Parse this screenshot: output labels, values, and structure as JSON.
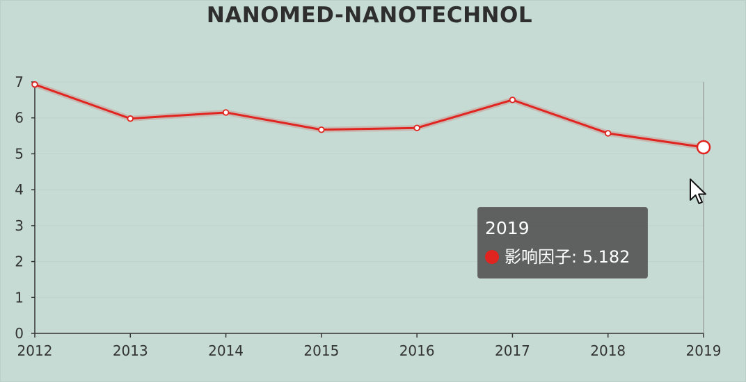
{
  "chart_data": {
    "type": "line",
    "title": "NANOMED-NANOTECHNOL",
    "xlabel": "",
    "ylabel": "",
    "categories": [
      "2012",
      "2013",
      "2014",
      "2015",
      "2016",
      "2017",
      "2018",
      "2019"
    ],
    "series": [
      {
        "name": "影响因子",
        "values": [
          6.93,
          5.98,
          6.15,
          5.67,
          5.72,
          6.5,
          5.57,
          5.182
        ],
        "color": "#e0241f"
      }
    ],
    "ylim": [
      0,
      7
    ],
    "yticks": [
      0,
      1,
      2,
      3,
      4,
      5,
      6,
      7
    ],
    "grid": true,
    "legend": "none"
  },
  "tooltip": {
    "title": "2019",
    "series_name": "影响因子",
    "value": "5.182",
    "label": "影响因子: 5.182",
    "dot_color": "#e0241f"
  },
  "colors": {
    "background": "#c5dbd3",
    "line": "#e0241f",
    "axis": "#333333",
    "grid": "#bed3cb"
  }
}
